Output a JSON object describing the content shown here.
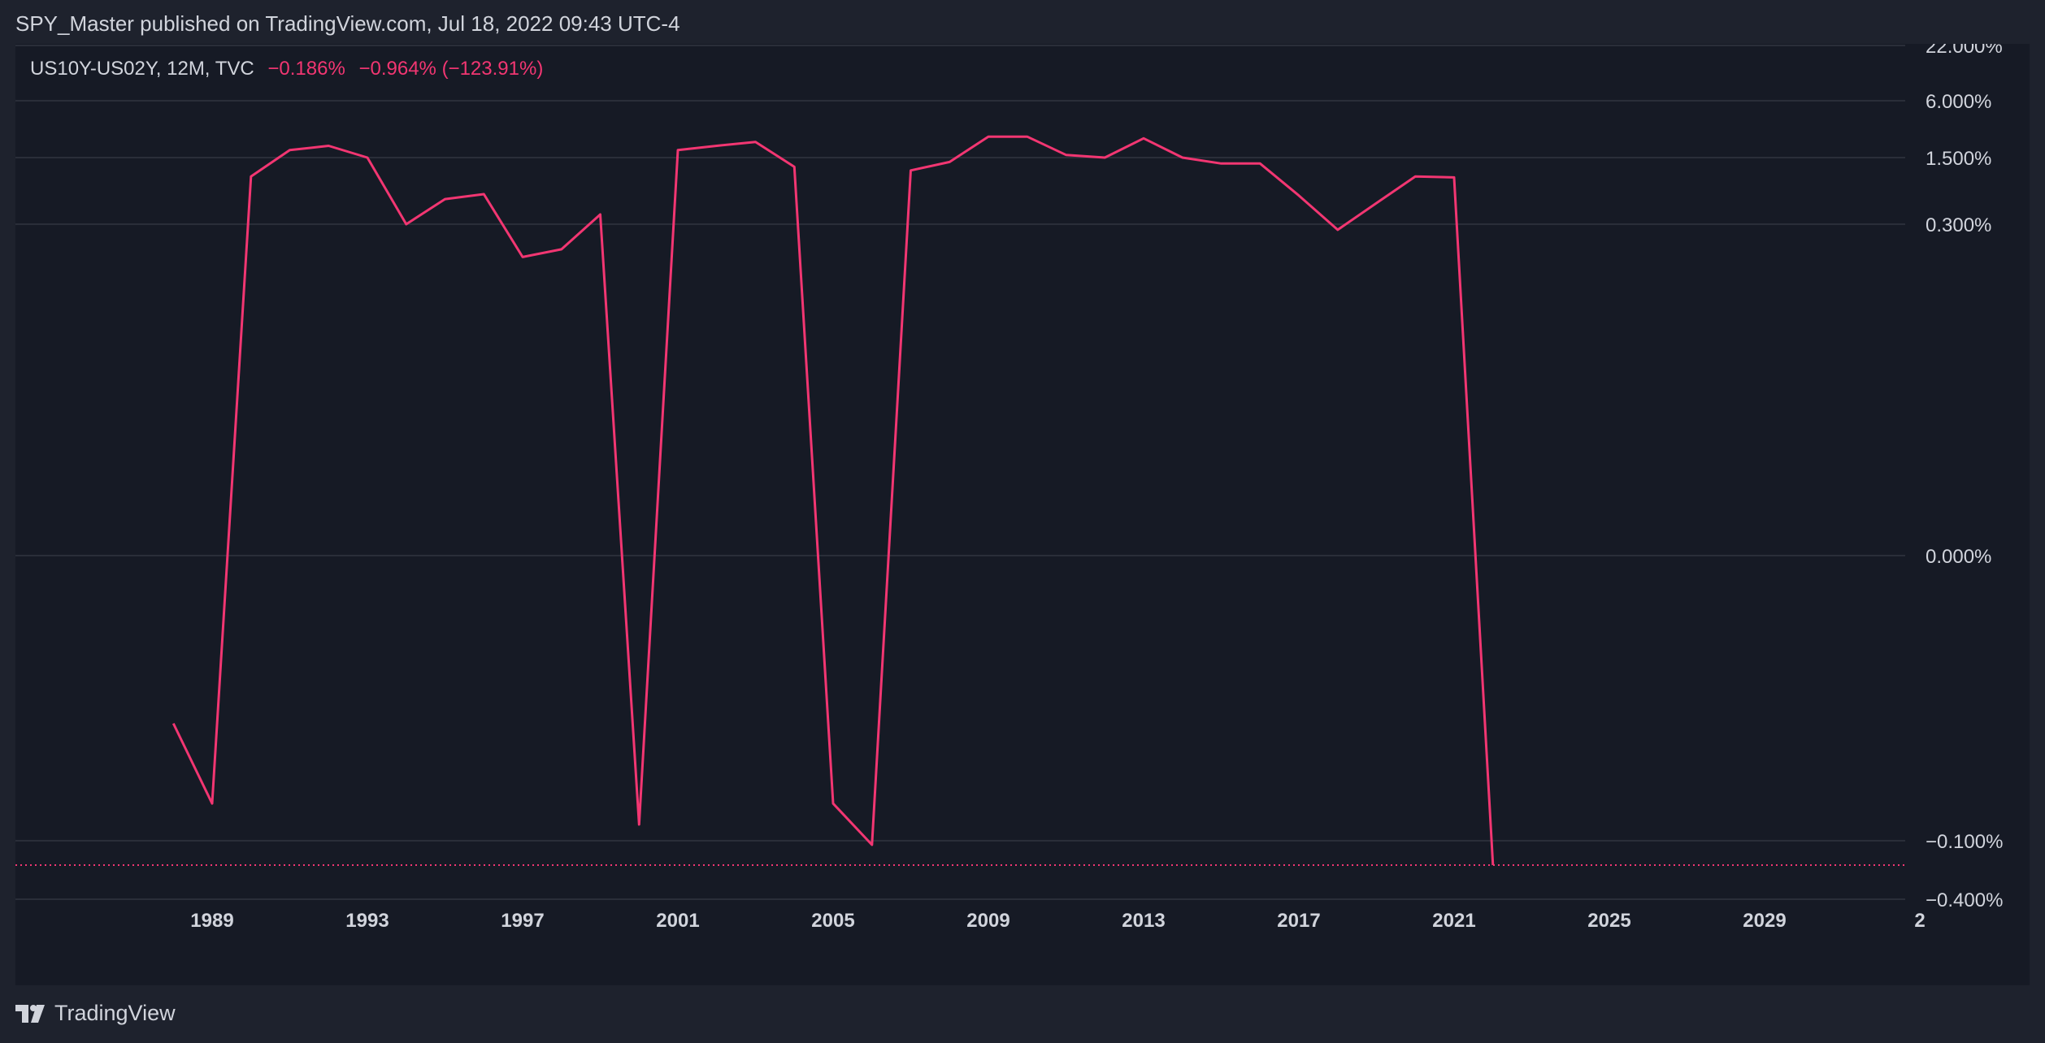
{
  "header": {
    "publisher_text": "SPY_Master published on TradingView.com, Jul 18, 2022 09:43 UTC-4"
  },
  "legend": {
    "symbol": "US10Y-US02Y, 12M, TVC",
    "last_value": "−0.186%",
    "change": "−0.964% (−123.91%)"
  },
  "footer": {
    "brand": "TradingView",
    "logo_icon": "tradingview-logo-icon"
  },
  "colors": {
    "background": "#1e222d",
    "pane": "#161a25",
    "line": "#f23672",
    "grid": "#2a2e39",
    "text": "#d1d4dc"
  },
  "chart_data": {
    "type": "line",
    "scale": "log",
    "grid": true,
    "series": [
      {
        "values": [
          {
            "x": "1988",
            "y": -0.02
          },
          {
            "x": "1989",
            "y": -0.06
          },
          {
            "x": "1990",
            "y": 0.95
          },
          {
            "x": "1991",
            "y": 1.8
          },
          {
            "x": "1992",
            "y": 2.0
          },
          {
            "x": "1993",
            "y": 1.5
          },
          {
            "x": "1994",
            "y": 0.3
          },
          {
            "x": "1995",
            "y": 0.55
          },
          {
            "x": "1996",
            "y": 0.62
          },
          {
            "x": "1997",
            "y": 0.2
          },
          {
            "x": "1998",
            "y": 0.22
          },
          {
            "x": "1999",
            "y": 0.38
          },
          {
            "x": "2000",
            "y": -0.08
          },
          {
            "x": "2001",
            "y": 1.8
          },
          {
            "x": "2002",
            "y": 2.0
          },
          {
            "x": "2003",
            "y": 2.2
          },
          {
            "x": "2004",
            "y": 1.2
          },
          {
            "x": "2005",
            "y": -0.06
          },
          {
            "x": "2006",
            "y": -0.11
          },
          {
            "x": "2007",
            "y": 1.1
          },
          {
            "x": "2008",
            "y": 1.35
          },
          {
            "x": "2009",
            "y": 2.5
          },
          {
            "x": "2010",
            "y": 2.5
          },
          {
            "x": "2011",
            "y": 1.6
          },
          {
            "x": "2012",
            "y": 1.5
          },
          {
            "x": "2013",
            "y": 2.4
          },
          {
            "x": "2014",
            "y": 1.5
          },
          {
            "x": "2015",
            "y": 1.3
          },
          {
            "x": "2016",
            "y": 1.3
          },
          {
            "x": "2017",
            "y": 0.6
          },
          {
            "x": "2018",
            "y": 0.28
          },
          {
            "x": "2019",
            "y": 0.5
          },
          {
            "x": "2020",
            "y": 0.95
          },
          {
            "x": "2021",
            "y": 0.93
          },
          {
            "x": "2022",
            "y": -0.186
          }
        ]
      }
    ],
    "x_ticks": [
      "1989",
      "1993",
      "1997",
      "2001",
      "2005",
      "2009",
      "2013",
      "2017",
      "2021",
      "2025",
      "2029",
      "2"
    ],
    "y_ticks": [
      {
        "label": "22.000%",
        "value": 22
      },
      {
        "label": "6.000%",
        "value": 6
      },
      {
        "label": "1.500%",
        "value": 1.5
      },
      {
        "label": "0.300%",
        "value": 0.3
      },
      {
        "label": "0.000%",
        "value": 0
      },
      {
        "label": "−0.100%",
        "value": -0.1
      },
      {
        "label": "−0.400%",
        "value": -0.4
      }
    ],
    "last_price_line": -0.186
  }
}
